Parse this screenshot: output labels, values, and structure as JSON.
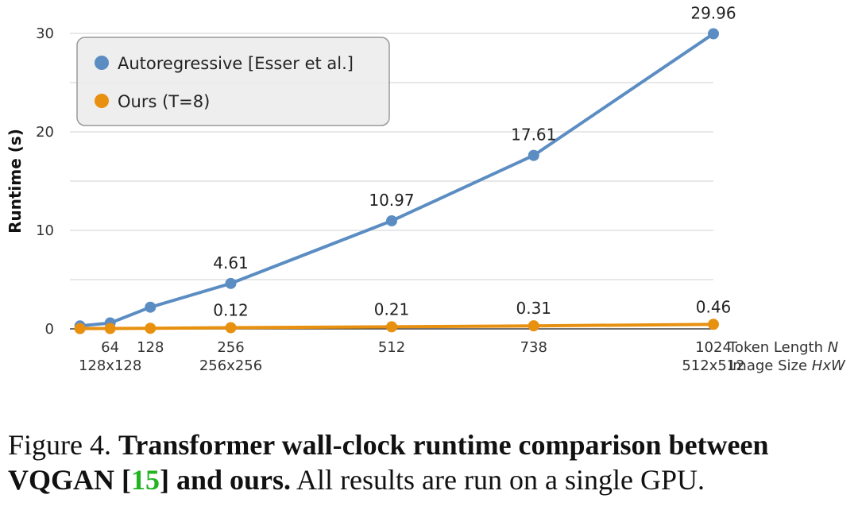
{
  "chart_data": {
    "type": "line",
    "ylabel": "Runtime (s)",
    "ylim": [
      0,
      30
    ],
    "yticks": [
      0,
      10,
      20,
      30
    ],
    "x_axis_name": "Token Length",
    "x_axis_var": "N",
    "x2_axis_name": "Image Size",
    "x2_axis_var": "HxW",
    "x": [
      16,
      64,
      128,
      256,
      512,
      738,
      1024
    ],
    "xticks": [
      {
        "token": "64",
        "size": "128x128"
      },
      {
        "token": "128",
        "size": ""
      },
      {
        "token": "256",
        "size": "256x256"
      },
      {
        "token": "512",
        "size": ""
      },
      {
        "token": "738",
        "size": ""
      },
      {
        "token": "1024",
        "size": "512x512"
      }
    ],
    "xtick_values": [
      64,
      128,
      256,
      512,
      738,
      1024
    ],
    "grid": true,
    "legend_position": "top-left",
    "series": [
      {
        "name": "Autoregressive [Esser et al.]",
        "color": "#5b8dc3",
        "values": [
          0.3,
          0.6,
          2.2,
          4.61,
          10.97,
          17.61,
          29.96
        ],
        "labels": [
          "",
          "",
          "",
          "4.61",
          "10.97",
          "17.61",
          "29.96"
        ]
      },
      {
        "name": "Ours (T=8)",
        "color": "#e8900f",
        "values": [
          0.03,
          0.04,
          0.06,
          0.12,
          0.21,
          0.31,
          0.46
        ],
        "labels": [
          "",
          "",
          "",
          "0.12",
          "0.21",
          "0.31",
          "0.46"
        ]
      }
    ]
  },
  "caption": {
    "prefix": "Figure 4. ",
    "bold_part1": "Transformer wall-clock runtime comparison between VQGAN [",
    "ref": "15",
    "bold_part2": "] and ours.",
    "rest": " All results are run on a single GPU."
  }
}
